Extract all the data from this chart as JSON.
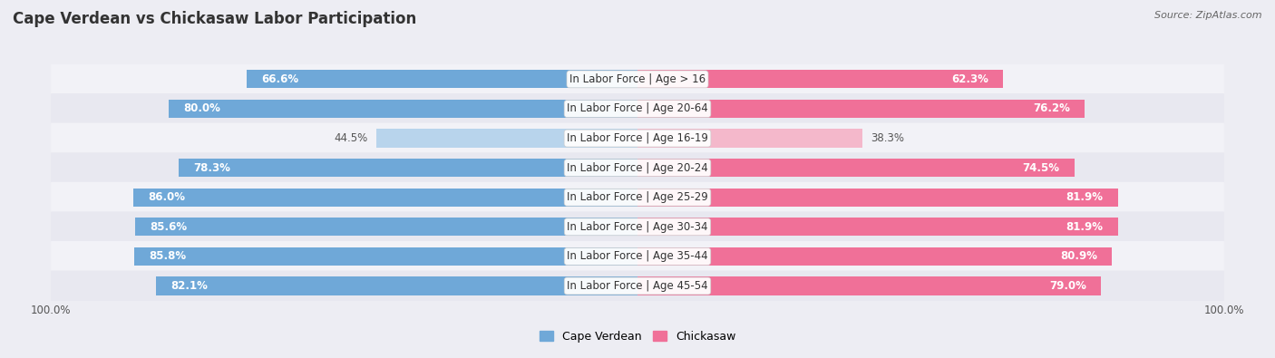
{
  "title": "Cape Verdean vs Chickasaw Labor Participation",
  "source": "Source: ZipAtlas.com",
  "categories": [
    "In Labor Force | Age > 16",
    "In Labor Force | Age 20-64",
    "In Labor Force | Age 16-19",
    "In Labor Force | Age 20-24",
    "In Labor Force | Age 25-29",
    "In Labor Force | Age 30-34",
    "In Labor Force | Age 35-44",
    "In Labor Force | Age 45-54"
  ],
  "cape_verdean": [
    66.6,
    80.0,
    44.5,
    78.3,
    86.0,
    85.6,
    85.8,
    82.1
  ],
  "chickasaw": [
    62.3,
    76.2,
    38.3,
    74.5,
    81.9,
    81.9,
    80.9,
    79.0
  ],
  "cv_color_full": "#6FA8D8",
  "cv_color_light": "#B8D4EC",
  "ck_color_full": "#F07098",
  "ck_color_light": "#F4B8CB",
  "row_bg_alt": [
    "#F2F2F7",
    "#E8E8F0"
  ],
  "max_val": 100.0,
  "bar_height": 0.62,
  "title_fontsize": 12,
  "label_fontsize": 8.5,
  "tick_fontsize": 8.5,
  "legend_fontsize": 9,
  "threshold": 55.0
}
